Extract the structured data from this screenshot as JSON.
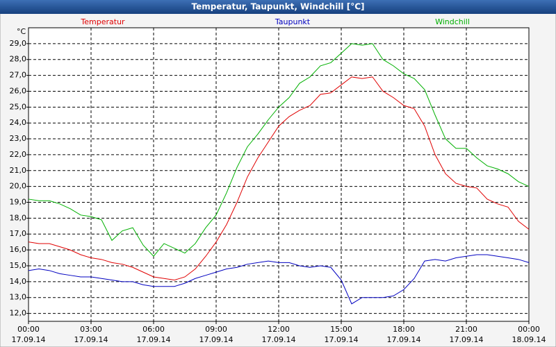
{
  "chart_data": {
    "type": "line",
    "title": "Temperatur, Taupunkt, Windchill [°C]",
    "y_unit": "°C",
    "x": [
      0,
      0.5,
      1,
      1.5,
      2,
      2.5,
      3,
      3.5,
      4,
      4.5,
      5,
      5.5,
      6,
      6.5,
      7,
      7.5,
      8,
      8.5,
      9,
      9.5,
      10,
      10.5,
      11,
      11.5,
      12,
      12.5,
      13,
      13.5,
      14,
      14.5,
      15,
      15.5,
      16,
      16.5,
      17,
      17.5,
      18,
      18.5,
      19,
      19.5,
      20,
      20.5,
      21,
      21.5,
      22,
      22.5,
      23,
      23.5,
      24
    ],
    "series": [
      {
        "name": "Temperatur",
        "color": "#e00000",
        "values": [
          16.5,
          16.4,
          16.4,
          16.2,
          16.0,
          15.7,
          15.5,
          15.4,
          15.2,
          15.1,
          14.9,
          14.6,
          14.3,
          14.2,
          14.1,
          14.3,
          14.8,
          15.6,
          16.5,
          17.6,
          19.0,
          20.6,
          21.8,
          22.8,
          23.8,
          24.4,
          24.8,
          25.1,
          25.8,
          25.9,
          26.4,
          26.9,
          26.8,
          26.9,
          26.0,
          25.6,
          25.1,
          24.9,
          23.8,
          22.0,
          20.8,
          20.2,
          20.0,
          19.9,
          19.2,
          18.9,
          18.7,
          17.8,
          17.3
        ]
      },
      {
        "name": "Taupunkt",
        "color": "#0000c0",
        "values": [
          14.7,
          14.8,
          14.7,
          14.5,
          14.4,
          14.3,
          14.3,
          14.2,
          14.1,
          14.0,
          14.0,
          13.8,
          13.7,
          13.7,
          13.7,
          13.9,
          14.2,
          14.4,
          14.6,
          14.8,
          14.9,
          15.1,
          15.2,
          15.3,
          15.2,
          15.2,
          15.0,
          14.9,
          15.0,
          14.9,
          14.1,
          12.6,
          13.0,
          13.0,
          13.0,
          13.1,
          13.5,
          14.2,
          15.3,
          15.4,
          15.3,
          15.5,
          15.6,
          15.7,
          15.7,
          15.6,
          15.5,
          15.4,
          15.2
        ]
      },
      {
        "name": "Windchill",
        "color": "#00b000",
        "values": [
          19.2,
          19.1,
          19.1,
          18.9,
          18.6,
          18.2,
          18.1,
          17.9,
          16.6,
          17.2,
          17.4,
          16.3,
          15.6,
          16.4,
          16.1,
          15.8,
          16.4,
          17.4,
          18.2,
          19.6,
          21.2,
          22.5,
          23.3,
          24.2,
          25.0,
          25.6,
          26.5,
          26.9,
          27.6,
          27.8,
          28.4,
          29.0,
          28.9,
          29.0,
          28.0,
          27.6,
          27.1,
          26.8,
          26.1,
          24.5,
          23.0,
          22.4,
          22.4,
          21.8,
          21.3,
          21.1,
          20.8,
          20.3,
          20.0
        ]
      }
    ],
    "xlim": [
      0,
      24
    ],
    "xticks": [
      {
        "value": 0,
        "label": "00:00",
        "date": "17.09.14"
      },
      {
        "value": 3,
        "label": "03:00",
        "date": "17.09.14"
      },
      {
        "value": 6,
        "label": "06:00",
        "date": "17.09.14"
      },
      {
        "value": 9,
        "label": "09:00",
        "date": "17.09.14"
      },
      {
        "value": 12,
        "label": "12:00",
        "date": "17.09.14"
      },
      {
        "value": 15,
        "label": "15:00",
        "date": "17.09.14"
      },
      {
        "value": 18,
        "label": "18:00",
        "date": "17.09.14"
      },
      {
        "value": 21,
        "label": "21:00",
        "date": "17.09.14"
      },
      {
        "value": 24,
        "label": "00:00",
        "date": "18.09.14"
      }
    ],
    "ylim": [
      11.5,
      30
    ],
    "yticks": [
      {
        "value": 12,
        "label": "12,0"
      },
      {
        "value": 13,
        "label": "13,0"
      },
      {
        "value": 14,
        "label": "14,0"
      },
      {
        "value": 15,
        "label": "15,0"
      },
      {
        "value": 16,
        "label": "16,0"
      },
      {
        "value": 17,
        "label": "17,0"
      },
      {
        "value": 18,
        "label": "18,0"
      },
      {
        "value": 19,
        "label": "19,0"
      },
      {
        "value": 20,
        "label": "20,0"
      },
      {
        "value": 21,
        "label": "21,0"
      },
      {
        "value": 22,
        "label": "22,0"
      },
      {
        "value": 23,
        "label": "23,0"
      },
      {
        "value": 24,
        "label": "24,0"
      },
      {
        "value": 25,
        "label": "25,0"
      },
      {
        "value": 26,
        "label": "26,0"
      },
      {
        "value": 27,
        "label": "27,0"
      },
      {
        "value": 28,
        "label": "28,0"
      },
      {
        "value": 29,
        "label": "29,0"
      }
    ],
    "grid": true
  }
}
